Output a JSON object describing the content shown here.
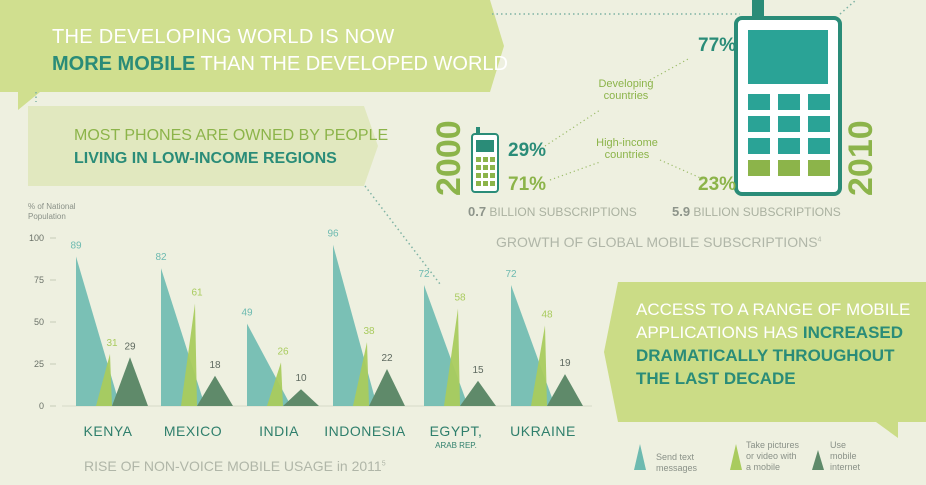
{
  "banner_top": {
    "line1": "THE DEVELOPING WORLD IS NOW",
    "line2_bold": "MORE MOBILE",
    "line2_rest": " THAN THE DEVELOPED WORLD"
  },
  "banner_mid": {
    "line1": "MOST PHONES ARE OWNED BY PEOPLE",
    "line2": "LIVING IN LOW-INCOME REGIONS"
  },
  "banner_right": {
    "line1": "ACCESS TO A RANGE OF MOBILE",
    "line2_rest": "APPLICATIONS HAS ",
    "line2_bold": "INCREASED",
    "line3": "DRAMATICALLY THROUGHOUT",
    "line4": "THE LAST DECADE"
  },
  "subscriptions": {
    "year_left": "2000",
    "year_right": "2010",
    "left_developing": "29%",
    "left_high": "71%",
    "right_developing": "77%",
    "right_high": "23%",
    "developing_label_1": "Developing",
    "developing_label_2": "countries",
    "high_label_1": "High-income",
    "high_label_2": "countries",
    "left_total_num": "0.7",
    "left_total_text": " BILLION SUBSCRIPTIONS",
    "right_total_num": "5.9",
    "right_total_text": " BILLION SUBSCRIPTIONS",
    "caption": "GROWTH OF GLOBAL MOBILE SUBSCRIPTIONS",
    "caption_sup": "4"
  },
  "chart_data": {
    "type": "bar",
    "title": "RISE OF NON-VOICE MOBILE USAGE in 2011",
    "title_sup": "5",
    "ylabel_1": "% of National",
    "ylabel_2": "Population",
    "ylim": [
      0,
      100
    ],
    "yticks": [
      "0",
      "25",
      "50",
      "75",
      "100"
    ],
    "categories": [
      "KENYA",
      "MEXICO",
      "INDIA",
      "INDONESIA",
      "EGYPT,",
      "UKRAINE"
    ],
    "category_sub": [
      "",
      "",
      "",
      "",
      "ARAB REP.",
      ""
    ],
    "series": [
      {
        "name": "Send text messages",
        "values": [
          89,
          82,
          49,
          96,
          72,
          72
        ],
        "color": "#6dbab0"
      },
      {
        "name": "Take pictures or video with a mobile",
        "values": [
          31,
          61,
          26,
          38,
          58,
          48
        ],
        "color": "#a9cb5e"
      },
      {
        "name": "Use mobile internet",
        "values": [
          29,
          18,
          10,
          22,
          15,
          19
        ],
        "color": "#5f8a6a"
      }
    ],
    "legend_placement": "bottom-right"
  },
  "legend": {
    "s1_l1": "Send text",
    "s1_l2": "messages",
    "s2_l1": "Take pictures",
    "s2_l2": "or video with",
    "s2_l3": "a mobile",
    "s3_l1": "Use",
    "s3_l2": "mobile",
    "s3_l3": "internet"
  },
  "colors": {
    "teal": "#2a8c78",
    "green": "#8cb44a",
    "light_teal": "#6dbab0",
    "light_green": "#a9cb5e",
    "dark_green": "#5f8a6a"
  }
}
